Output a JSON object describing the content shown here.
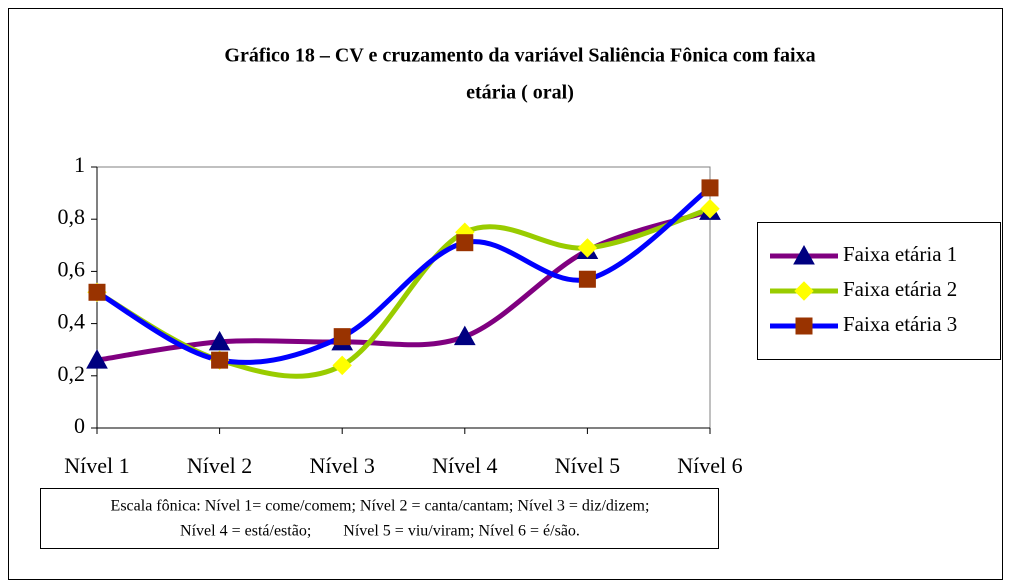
{
  "chart_data": {
    "type": "line",
    "title": [
      "Gráfico 18 – CV e cruzamento da variável Saliência Fônica com faixa",
      "etária ( oral)"
    ],
    "categories": [
      "Nível 1",
      "Nível 2",
      "Nível 3",
      "Nível 4",
      "Nível 5",
      "Nível 6"
    ],
    "series": [
      {
        "name": "Faixa etária 1",
        "color": "#800080",
        "marker": "triangle",
        "marker_color": "#000080",
        "values": [
          0.26,
          0.33,
          0.33,
          0.35,
          0.68,
          0.83
        ]
      },
      {
        "name": "Faixa etária 2",
        "color": "#99cc00",
        "marker": "diamond",
        "marker_color": "#ffff00",
        "values": [
          0.52,
          0.26,
          0.24,
          0.75,
          0.69,
          0.84
        ]
      },
      {
        "name": "Faixa etária 3",
        "color": "#0000ff",
        "marker": "square",
        "marker_color": "#993300",
        "values": [
          0.52,
          0.26,
          0.35,
          0.71,
          0.57,
          0.92
        ]
      }
    ],
    "ylim": [
      0,
      1
    ],
    "yticks": [
      0,
      {
        "value": 0.2,
        "label": "0,2"
      },
      {
        "value": 0.4,
        "label": "0,4"
      },
      {
        "value": 0.6,
        "label": "0,6"
      },
      {
        "value": 0.8,
        "label": "0,8"
      },
      1
    ],
    "grid": false,
    "smooth": true,
    "legend": "right",
    "note": [
      "Escala fônica: Nível 1= come/comem; Nível 2 = canta/cantam; Nível 3 = diz/dizem;",
      "Nível 4 = está/estão;        Nível 5 = viu/viram; Nível 6 = é/são."
    ]
  }
}
